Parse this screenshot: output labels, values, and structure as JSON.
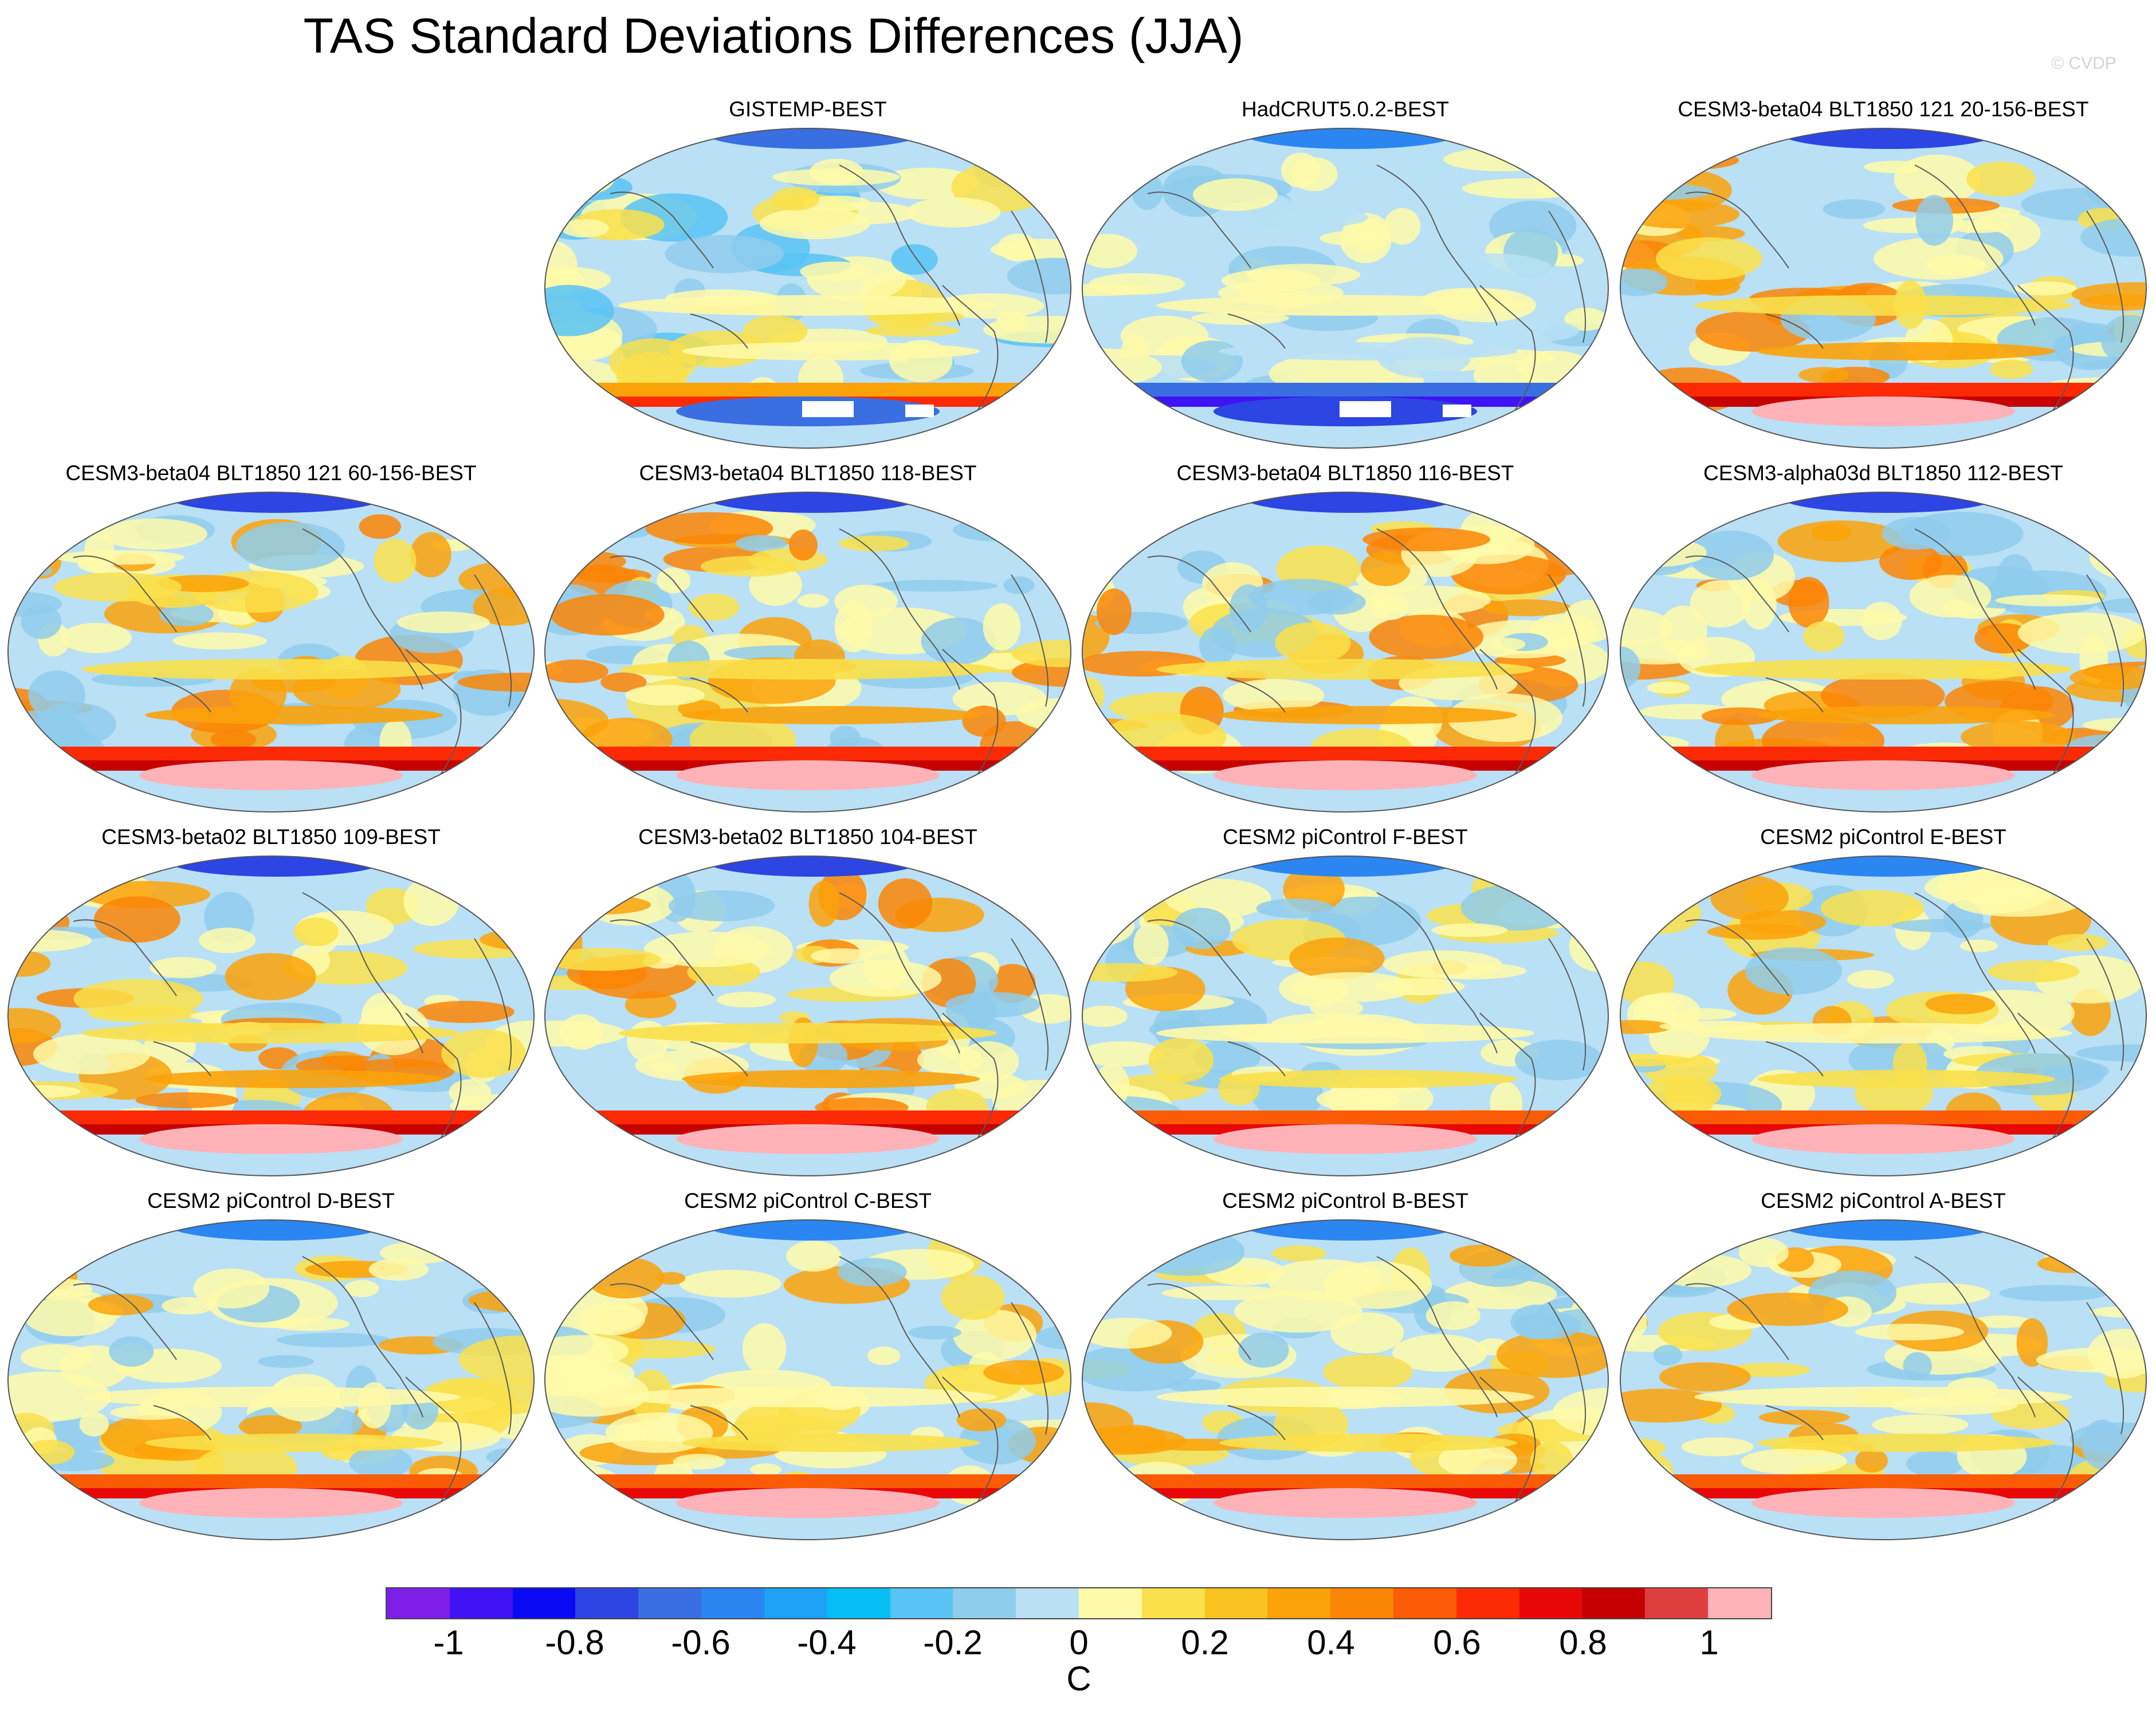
{
  "title": "TAS Standard Deviations Differences (JJA)",
  "watermark": "© CVDP",
  "panels": [
    {
      "label": "GISTEMP-BEST",
      "style": "obs",
      "slot": 1
    },
    {
      "label": "HadCRUT5.0.2-BEST",
      "style": "obs2",
      "slot": 2
    },
    {
      "label": "CESM3-beta04 BLT1850 121 20-156-BEST",
      "style": "model",
      "slot": 3
    },
    {
      "label": "CESM3-beta04 BLT1850 121 60-156-BEST",
      "style": "model",
      "slot": 4
    },
    {
      "label": "CESM3-beta04 BLT1850 118-BEST",
      "style": "model",
      "slot": 5
    },
    {
      "label": "CESM3-beta04 BLT1850 116-BEST",
      "style": "model",
      "slot": 6
    },
    {
      "label": "CESM3-alpha03d BLT1850 112-BEST",
      "style": "model",
      "slot": 7
    },
    {
      "label": "CESM3-beta02 BLT1850 109-BEST",
      "style": "model",
      "slot": 8
    },
    {
      "label": "CESM3-beta02 BLT1850 104-BEST",
      "style": "model",
      "slot": 9
    },
    {
      "label": "CESM2 piControl F-BEST",
      "style": "cesm2",
      "slot": 10
    },
    {
      "label": "CESM2 piControl E-BEST",
      "style": "cesm2",
      "slot": 11
    },
    {
      "label": "CESM2 piControl D-BEST",
      "style": "cesm2",
      "slot": 12
    },
    {
      "label": "CESM2 piControl C-BEST",
      "style": "cesm2",
      "slot": 13
    },
    {
      "label": "CESM2 piControl B-BEST",
      "style": "cesm2",
      "slot": 14
    },
    {
      "label": "CESM2 piControl A-BEST",
      "style": "cesm2",
      "slot": 15
    }
  ],
  "colorbar": {
    "colors": [
      "#7e1fe8",
      "#4013f5",
      "#0a0af5",
      "#2c45e3",
      "#3a6fe2",
      "#2b86f2",
      "#1ea2f5",
      "#07bff5",
      "#58c3f4",
      "#8fcdec",
      "#b9e0f5",
      "#fffaa9",
      "#fae04a",
      "#f9c322",
      "#fba209",
      "#fb8505",
      "#fb5b05",
      "#fb2a05",
      "#e80808",
      "#c60000",
      "#dd3f3f",
      "#ffb3b8"
    ],
    "tick_labels": [
      "-1",
      "-0.8",
      "-0.6",
      "-0.4",
      "-0.2",
      "0",
      "0.2",
      "0.4",
      "0.6",
      "0.8",
      "1"
    ],
    "units": "C"
  }
}
